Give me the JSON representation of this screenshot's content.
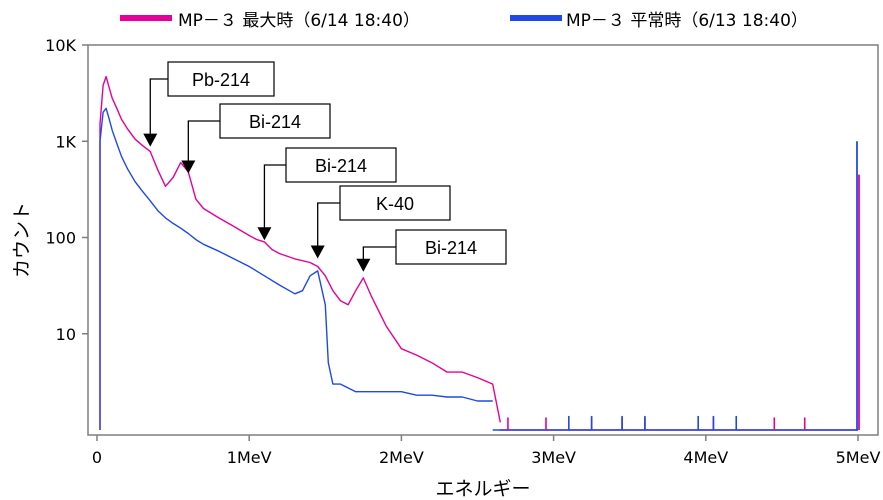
{
  "chart_data": {
    "type": "line",
    "title": "",
    "xlabel": "エネルギー",
    "ylabel": "カウント",
    "xlim": [
      0,
      5.0
    ],
    "ylim": [
      1,
      10000
    ],
    "log_y": true,
    "grid": false,
    "x_unit": "MeV",
    "x_tick_values": [
      0,
      1,
      2,
      3,
      4,
      5
    ],
    "x_tick_labels": [
      "0",
      "1MeV",
      "2MeV",
      "3MeV",
      "4MeV",
      "5MeV"
    ],
    "y_tick_values": [
      10,
      100,
      1000,
      10000
    ],
    "y_tick_labels": [
      "10",
      "100",
      "1K",
      "10K"
    ],
    "legend_position": "top",
    "series": [
      {
        "name": "MP－３ 最大時（6/14 18:40）",
        "color": "#e6009a",
        "x": [
          0.02,
          0.04,
          0.06,
          0.08,
          0.1,
          0.13,
          0.16,
          0.2,
          0.25,
          0.3,
          0.35,
          0.4,
          0.45,
          0.5,
          0.55,
          0.6,
          0.65,
          0.7,
          0.8,
          0.9,
          1.0,
          1.05,
          1.1,
          1.15,
          1.2,
          1.3,
          1.4,
          1.45,
          1.5,
          1.55,
          1.6,
          1.65,
          1.7,
          1.75,
          1.8,
          1.9,
          2.0,
          2.1,
          2.2,
          2.3,
          2.4,
          2.5,
          2.6,
          2.65
        ],
        "y": [
          1500,
          3800,
          4700,
          3600,
          2800,
          2200,
          1700,
          1350,
          1050,
          900,
          780,
          500,
          340,
          420,
          600,
          480,
          250,
          200,
          160,
          130,
          105,
          95,
          90,
          75,
          68,
          60,
          55,
          50,
          40,
          28,
          22,
          20,
          28,
          38,
          25,
          12,
          7,
          6,
          5,
          4,
          4,
          3.5,
          3,
          1.2
        ]
      },
      {
        "name": "MP－３ 平常時（6/13 18:40）",
        "color": "#1f49e6",
        "x": [
          0.02,
          0.04,
          0.06,
          0.08,
          0.1,
          0.13,
          0.16,
          0.2,
          0.25,
          0.3,
          0.35,
          0.4,
          0.45,
          0.5,
          0.55,
          0.6,
          0.65,
          0.7,
          0.8,
          0.9,
          1.0,
          1.1,
          1.2,
          1.3,
          1.35,
          1.4,
          1.45,
          1.5,
          1.52,
          1.55,
          1.6,
          1.7,
          1.8,
          1.9,
          2.0,
          2.1,
          2.2,
          2.3,
          2.4,
          2.5,
          2.6
        ],
        "y": [
          1000,
          2000,
          2200,
          1700,
          1300,
          950,
          700,
          520,
          380,
          300,
          240,
          190,
          160,
          140,
          125,
          110,
          95,
          85,
          72,
          60,
          50,
          40,
          32,
          26,
          28,
          40,
          45,
          20,
          5,
          3,
          3,
          2.5,
          2.5,
          2.5,
          2.5,
          2.3,
          2.3,
          2.2,
          2.2,
          2,
          2
        ]
      }
    ],
    "sparse_lines": [
      {
        "series": 0,
        "x": [
          2.7,
          2.95,
          3.25,
          3.45,
          3.6,
          4.05,
          4.45,
          4.65
        ],
        "y": [
          1.35,
          1.35,
          1.35,
          1.35,
          1.35,
          1.35,
          1.35,
          1.35
        ]
      },
      {
        "series": 1,
        "x": [
          3.1,
          3.25,
          3.45,
          3.6,
          3.95,
          4.05,
          4.2
        ],
        "y": [
          1.4,
          1.4,
          1.4,
          1.4,
          1.4,
          1.4,
          1.4
        ]
      }
    ],
    "edge_spikes": [
      {
        "series": 0,
        "x": 5.0,
        "y": 450
      },
      {
        "series": 1,
        "x": 5.0,
        "y": 1000
      }
    ],
    "annotations": [
      {
        "text": "Pb-214",
        "x": 0.35,
        "y": 800
      },
      {
        "text": "Bi-214",
        "x": 0.6,
        "y": 420
      },
      {
        "text": "Bi-214",
        "x": 1.1,
        "y": 85
      },
      {
        "text": "K-40",
        "x": 1.45,
        "y": 55
      },
      {
        "text": "Bi-214",
        "x": 1.75,
        "y": 40
      }
    ]
  }
}
